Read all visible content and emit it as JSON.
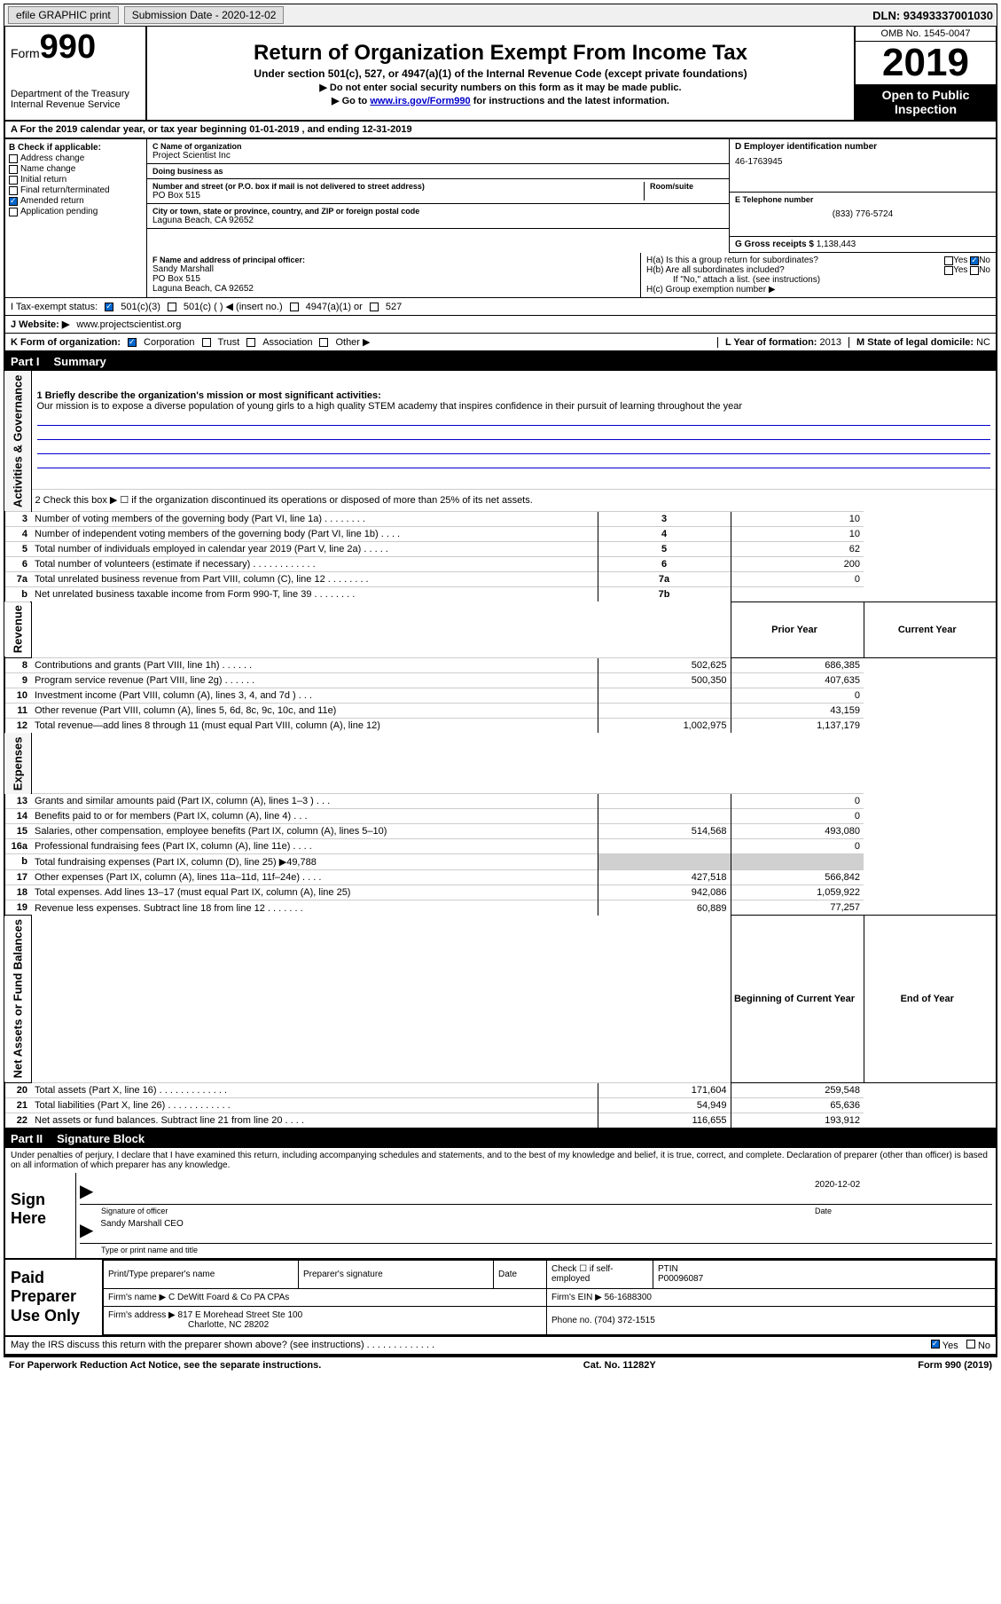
{
  "topbar": {
    "efile": "efile GRAPHIC print",
    "submission_label": "Submission Date - 2020-12-02",
    "dln": "DLN: 93493337001030"
  },
  "header": {
    "form_word": "Form",
    "form_number": "990",
    "dept1": "Department of the Treasury",
    "dept2": "Internal Revenue Service",
    "title": "Return of Organization Exempt From Income Tax",
    "sub": "Under section 501(c), 527, or 4947(a)(1) of the Internal Revenue Code (except private foundations)",
    "note1": "▶ Do not enter social security numbers on this form as it may be made public.",
    "note2_pre": "▶ Go to ",
    "note2_link": "www.irs.gov/Form990",
    "note2_post": " for instructions and the latest information.",
    "omb": "OMB No. 1545-0047",
    "year": "2019",
    "inspection1": "Open to Public",
    "inspection2": "Inspection"
  },
  "rowA": "A For the 2019 calendar year, or tax year beginning 01-01-2019    , and ending 12-31-2019",
  "colB": {
    "label": "B Check if applicable:",
    "items": [
      {
        "text": "Address change",
        "checked": false
      },
      {
        "text": "Name change",
        "checked": false
      },
      {
        "text": "Initial return",
        "checked": false
      },
      {
        "text": "Final return/terminated",
        "checked": false
      },
      {
        "text": "Amended return",
        "checked": true
      },
      {
        "text": "Application pending",
        "checked": false
      }
    ]
  },
  "colC": {
    "name_label": "C Name of organization",
    "name": "Project Scientist Inc",
    "dba_label": "Doing business as",
    "dba": "",
    "addr_label": "Number and street (or P.O. box if mail is not delivered to street address)",
    "room_label": "Room/suite",
    "addr": "PO Box 515",
    "city_label": "City or town, state or province, country, and ZIP or foreign postal code",
    "city": "Laguna Beach, CA  92652",
    "officer_label": "F  Name and address of principal officer:",
    "officer_name": "Sandy Marshall",
    "officer_addr1": "PO Box 515",
    "officer_addr2": "Laguna Beach, CA  92652"
  },
  "colD": {
    "ein_label": "D Employer identification number",
    "ein": "46-1763945",
    "phone_label": "E Telephone number",
    "phone": "(833) 776-5724",
    "gross_label": "G Gross receipts $",
    "gross": "1,138,443"
  },
  "colH": {
    "ha": "H(a)  Is this a group return for subordinates?",
    "hb": "H(b)  Are all subordinates included?",
    "hb_note": "If \"No,\" attach a list. (see instructions)",
    "hc": "H(c)  Group exemption number ▶",
    "yes": "Yes",
    "no": "No"
  },
  "rowI": {
    "label": "I   Tax-exempt status:",
    "opt1": "501(c)(3)",
    "opt2": "501(c) (  ) ◀ (insert no.)",
    "opt3": "4947(a)(1) or",
    "opt4": "527"
  },
  "rowJ": {
    "label": "J   Website: ▶",
    "value": "www.projectscientist.org"
  },
  "rowK": {
    "label": "K Form of organization:",
    "opt1": "Corporation",
    "opt2": "Trust",
    "opt3": "Association",
    "opt4": "Other ▶",
    "l_label": "L Year of formation:",
    "l_value": "2013",
    "m_label": "M State of legal domicile:",
    "m_value": "NC"
  },
  "part1": {
    "num": "Part I",
    "title": "Summary"
  },
  "summary": {
    "line1_label": "1   Briefly describe the organization's mission or most significant activities:",
    "line1_text": "Our mission is to expose a diverse population of young girls to a high quality STEM academy that inspires confidence in their pursuit of learning throughout the year",
    "line2": "2    Check this box ▶ ☐ if the organization discontinued its operations or disposed of more than 25% of its net assets.",
    "lines_top": [
      {
        "n": "3",
        "label": "Number of voting members of the governing body (Part VI, line 1a)  .    .    .    .    .    .    .    .",
        "box": "3",
        "val": "10"
      },
      {
        "n": "4",
        "label": "Number of independent voting members of the governing body (Part VI, line 1b)   .    .    .    .",
        "box": "4",
        "val": "10"
      },
      {
        "n": "5",
        "label": "Total number of individuals employed in calendar year 2019 (Part V, line 2a)    .    .    .    .    .",
        "box": "5",
        "val": "62"
      },
      {
        "n": "6",
        "label": "Total number of volunteers (estimate if necessary)    .    .    .    .    .    .    .    .    .    .    .    .",
        "box": "6",
        "val": "200"
      },
      {
        "n": "7a",
        "label": "Total unrelated business revenue from Part VIII, column (C), line 12   .    .    .    .    .    .    .    .",
        "box": "7a",
        "val": "0"
      },
      {
        "n": "b",
        "label": "Net unrelated business taxable income from Form 990-T, line 39    .    .    .    .    .    .    .    .",
        "box": "7b",
        "val": ""
      }
    ],
    "col_prior": "Prior Year",
    "col_current": "Current Year",
    "revenue": [
      {
        "n": "8",
        "label": "Contributions and grants (Part VIII, line 1h)    .    .    .    .    .    .",
        "prior": "502,625",
        "curr": "686,385"
      },
      {
        "n": "9",
        "label": "Program service revenue (Part VIII, line 2g)    .    .    .    .    .    .",
        "prior": "500,350",
        "curr": "407,635"
      },
      {
        "n": "10",
        "label": "Investment income (Part VIII, column (A), lines 3, 4, and 7d )    .    .    .",
        "prior": "",
        "curr": "0"
      },
      {
        "n": "11",
        "label": "Other revenue (Part VIII, column (A), lines 5, 6d, 8c, 9c, 10c, and 11e)",
        "prior": "",
        "curr": "43,159"
      },
      {
        "n": "12",
        "label": "Total revenue—add lines 8 through 11 (must equal Part VIII, column (A), line 12)",
        "prior": "1,002,975",
        "curr": "1,137,179"
      }
    ],
    "expenses": [
      {
        "n": "13",
        "label": "Grants and similar amounts paid (Part IX, column (A), lines 1–3 )   .    .    .",
        "prior": "",
        "curr": "0"
      },
      {
        "n": "14",
        "label": "Benefits paid to or for members (Part IX, column (A), line 4)   .    .    .",
        "prior": "",
        "curr": "0"
      },
      {
        "n": "15",
        "label": "Salaries, other compensation, employee benefits (Part IX, column (A), lines 5–10)",
        "prior": "514,568",
        "curr": "493,080"
      },
      {
        "n": "16a",
        "label": "Professional fundraising fees (Part IX, column (A), line 11e)   .    .    .    .",
        "prior": "",
        "curr": "0"
      },
      {
        "n": "b",
        "label": "Total fundraising expenses (Part IX, column (D), line 25) ▶49,788",
        "prior": "shaded",
        "curr": "shaded"
      },
      {
        "n": "17",
        "label": "Other expenses (Part IX, column (A), lines 11a–11d, 11f–24e)    .    .    .    .",
        "prior": "427,518",
        "curr": "566,842"
      },
      {
        "n": "18",
        "label": "Total expenses. Add lines 13–17 (must equal Part IX, column (A), line 25)",
        "prior": "942,086",
        "curr": "1,059,922"
      },
      {
        "n": "19",
        "label": "Revenue less expenses. Subtract line 18 from line 12 .    .    .    .    .    .    .",
        "prior": "60,889",
        "curr": "77,257"
      }
    ],
    "col_begin": "Beginning of Current Year",
    "col_end": "End of Year",
    "netassets": [
      {
        "n": "20",
        "label": "Total assets (Part X, line 16)  .    .    .    .    .    .    .    .    .    .    .    .    .",
        "prior": "171,604",
        "curr": "259,548"
      },
      {
        "n": "21",
        "label": "Total liabilities (Part X, line 26)  .    .    .    .    .    .    .    .    .    .    .    .",
        "prior": "54,949",
        "curr": "65,636"
      },
      {
        "n": "22",
        "label": "Net assets or fund balances. Subtract line 21 from line 20  .    .    .    .",
        "prior": "116,655",
        "curr": "193,912"
      }
    ]
  },
  "vtabs": {
    "gov": "Activities & Governance",
    "rev": "Revenue",
    "exp": "Expenses",
    "net": "Net Assets or Fund Balances"
  },
  "part2": {
    "num": "Part II",
    "title": "Signature Block",
    "penalty": "Under penalties of perjury, I declare that I have examined this return, including accompanying schedules and statements, and to the best of my knowledge and belief, it is true, correct, and complete. Declaration of preparer (other than officer) is based on all information of which preparer has any knowledge."
  },
  "sign": {
    "here": "Sign Here",
    "sig_label": "Signature of officer",
    "date_label": "Date",
    "date": "2020-12-02",
    "name": "Sandy Marshall CEO",
    "type_label": "Type or print name and title"
  },
  "preparer": {
    "left": "Paid Preparer Use Only",
    "h1": "Print/Type preparer's name",
    "h2": "Preparer's signature",
    "h3": "Date",
    "h4_pre": "Check ☐ if self-employed",
    "h5": "PTIN",
    "ptin": "P00096087",
    "firm_label": "Firm's name    ▶",
    "firm": "C DeWitt Foard & Co PA CPAs",
    "ein_label": "Firm's EIN ▶",
    "ein": "56-1688300",
    "addr_label": "Firm's address ▶",
    "addr1": "817 E Morehead Street Ste 100",
    "addr2": "Charlotte, NC  28202",
    "phone_label": "Phone no.",
    "phone": "(704) 372-1515"
  },
  "discuss": {
    "text": "May the IRS discuss this return with the preparer shown above? (see instructions)   .    .    .    .    .    .    .    .    .    .    .    .    .",
    "yes": "Yes",
    "no": "No"
  },
  "footer": {
    "left": "For Paperwork Reduction Act Notice, see the separate instructions.",
    "mid": "Cat. No. 11282Y",
    "right": "Form 990 (2019)"
  }
}
